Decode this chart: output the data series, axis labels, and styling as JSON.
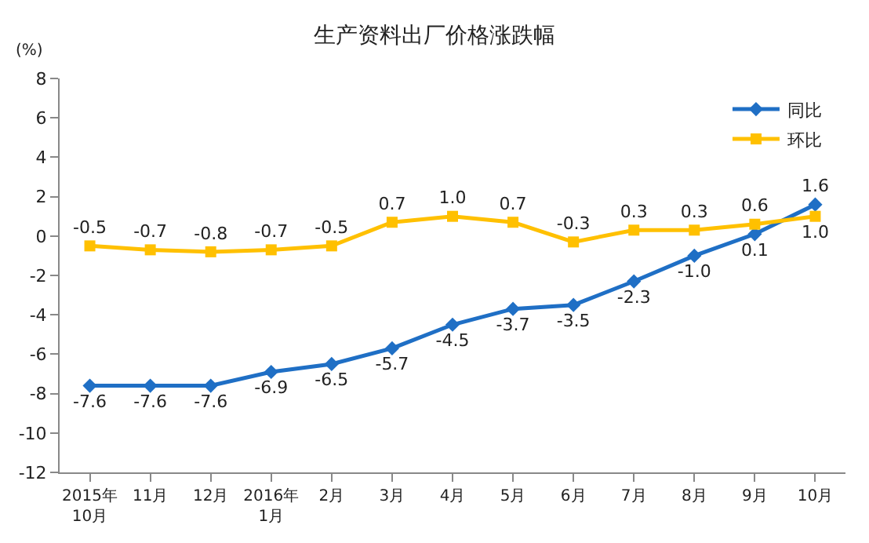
{
  "chart_data": {
    "type": "line",
    "title": "生产资料出厂价格涨跌幅",
    "ylabel": "(%)",
    "categories": [
      "2015年\n10月",
      "11月",
      "12月",
      "2016年\n1月",
      "2月",
      "3月",
      "4月",
      "5月",
      "6月",
      "7月",
      "8月",
      "9月",
      "10月"
    ],
    "series": [
      {
        "name": "同比",
        "color": "#1f6fc5",
        "marker": "diamond",
        "values": [
          -7.6,
          -7.6,
          -7.6,
          -6.9,
          -6.5,
          -5.7,
          -4.5,
          -3.7,
          -3.5,
          -2.3,
          -1.0,
          0.1,
          1.6
        ],
        "value_labels": [
          "-7.6",
          "-7.6",
          "-7.6",
          "-6.9",
          "-6.5",
          "-5.7",
          "-4.5",
          "-3.7",
          "-3.5",
          "-2.3",
          "-1.0",
          "0.1",
          "1.6"
        ]
      },
      {
        "name": "环比",
        "color": "#ffc000",
        "marker": "square",
        "values": [
          -0.5,
          -0.7,
          -0.8,
          -0.7,
          -0.5,
          0.7,
          1.0,
          0.7,
          -0.3,
          0.3,
          0.3,
          0.6,
          1.0
        ],
        "value_labels": [
          "-0.5",
          "-0.7",
          "-0.8",
          "-0.7",
          "-0.5",
          "0.7",
          "1.0",
          "0.7",
          "-0.3",
          "0.3",
          "0.3",
          "0.6",
          "1.0"
        ]
      }
    ],
    "ylim": [
      -12,
      8
    ],
    "yticks": [
      -12,
      -10,
      -8,
      -6,
      -4,
      -2,
      0,
      2,
      4,
      6,
      8
    ],
    "grid": false,
    "legend": "top right"
  }
}
